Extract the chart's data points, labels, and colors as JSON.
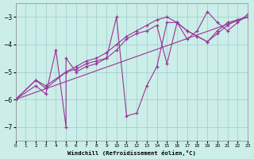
{
  "background_color": "#cceee8",
  "line_color": "#993399",
  "xlabel": "Windchill (Refroidissement éolien,°C)",
  "xlim": [
    0,
    23
  ],
  "ylim": [
    -7.5,
    -2.5
  ],
  "yticks": [
    -7,
    -6,
    -5,
    -4,
    -3
  ],
  "xticks": [
    0,
    1,
    2,
    3,
    4,
    5,
    6,
    7,
    8,
    9,
    10,
    11,
    12,
    13,
    14,
    15,
    16,
    17,
    18,
    19,
    20,
    21,
    22,
    23
  ],
  "series": [
    {
      "x": [
        0,
        2,
        3,
        4,
        5,
        5,
        6,
        7,
        8,
        9,
        10,
        11,
        12,
        13,
        14,
        15,
        16,
        17,
        18,
        19,
        20,
        21,
        22,
        23
      ],
      "y": [
        -6.0,
        -5.5,
        -5.8,
        -4.2,
        -7.0,
        -4.5,
        -5.0,
        -4.8,
        -4.7,
        -4.5,
        -3.0,
        -6.6,
        -6.5,
        -5.5,
        -4.8,
        -3.2,
        -3.2,
        -3.8,
        -3.5,
        -2.8,
        -3.2,
        -3.5,
        -3.2,
        -2.9
      ],
      "marker": true
    },
    {
      "x": [
        0,
        2,
        3,
        5,
        6,
        7,
        8,
        9,
        10,
        11,
        12,
        13,
        14,
        15,
        16,
        17,
        18,
        19,
        20,
        21,
        22,
        23
      ],
      "y": [
        -6.0,
        -5.3,
        -5.6,
        -5.0,
        -4.9,
        -4.7,
        -4.6,
        -4.5,
        -4.2,
        -3.8,
        -3.6,
        -3.5,
        -3.3,
        -4.7,
        -3.2,
        -3.5,
        -3.7,
        -3.9,
        -3.6,
        -3.3,
        -3.1,
        -3.0
      ],
      "marker": true
    },
    {
      "x": [
        0,
        23
      ],
      "y": [
        -6.0,
        -3.0
      ],
      "marker": false
    },
    {
      "x": [
        0,
        2,
        3,
        5,
        6,
        7,
        8,
        9,
        10,
        11,
        12,
        13,
        14,
        15,
        16,
        17,
        18,
        19,
        20,
        21,
        22,
        23
      ],
      "y": [
        -6.0,
        -5.3,
        -5.5,
        -5.0,
        -4.8,
        -4.6,
        -4.5,
        -4.3,
        -4.0,
        -3.7,
        -3.5,
        -3.3,
        -3.1,
        -3.0,
        -3.2,
        -3.5,
        -3.7,
        -3.9,
        -3.5,
        -3.2,
        -3.1,
        -3.0
      ],
      "marker": true
    }
  ]
}
